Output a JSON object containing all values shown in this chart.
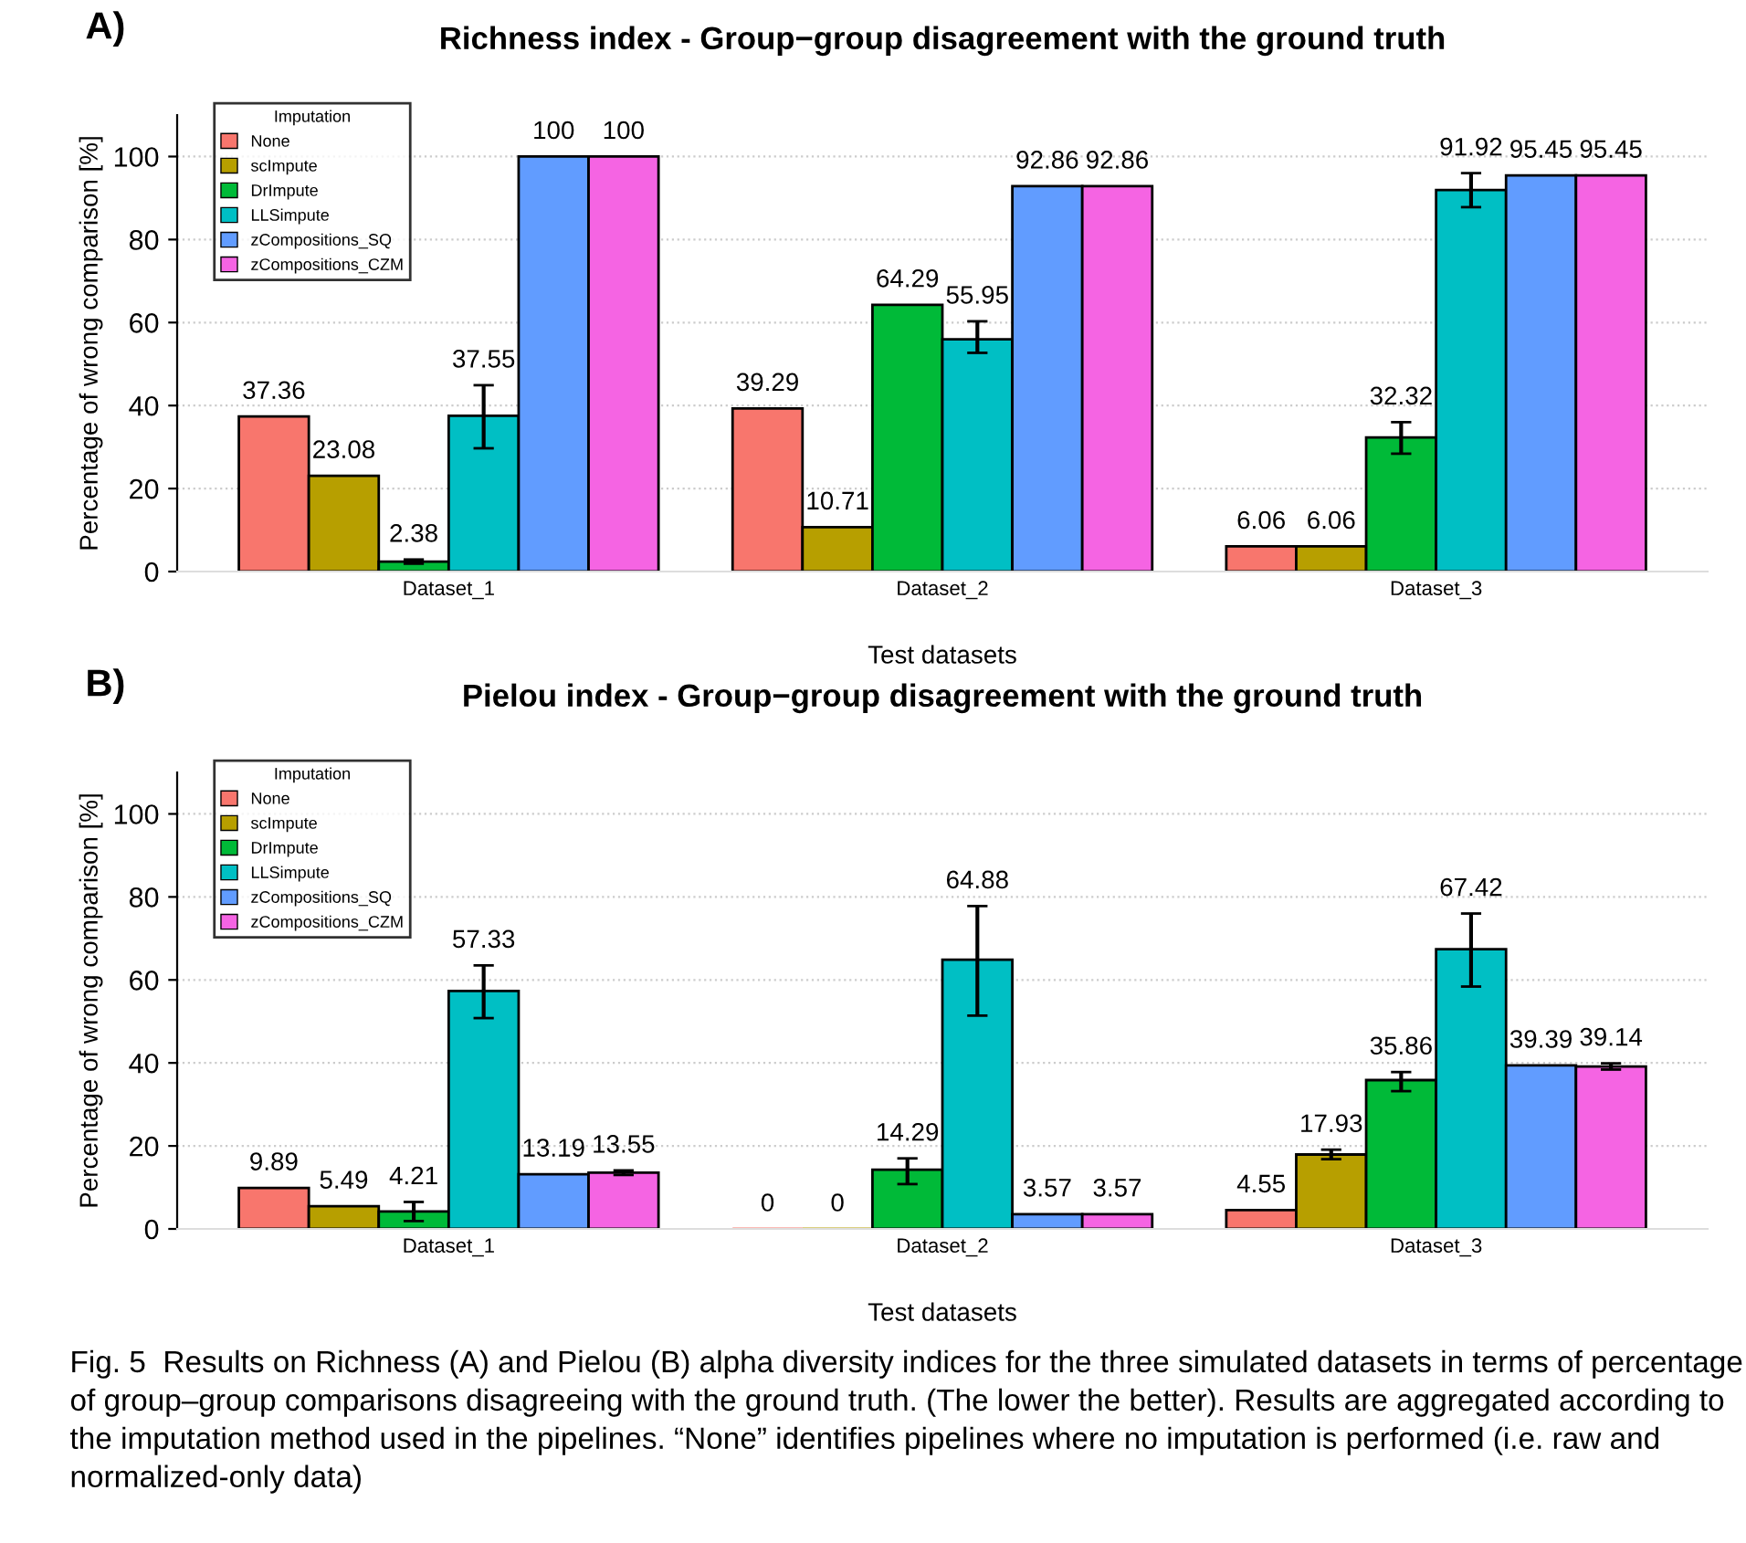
{
  "chart_data": [
    {
      "type": "bar",
      "title": "Richness index - Group−group disagreement with the ground truth",
      "xlabel": "Test datasets",
      "ylabel": "Percentage of wrong comparison [%]",
      "legend_title": "Imputation",
      "legend": "top left",
      "grid": "y",
      "data_labels": true,
      "annotations": [
        "A)"
      ],
      "categories": [
        "Dataset_1",
        "Dataset_2",
        "Dataset_3"
      ],
      "ylim": [
        0,
        110
      ],
      "yticks": [
        0,
        20,
        40,
        60,
        80,
        100
      ],
      "series": [
        {
          "name": "None",
          "color": "#f8766d",
          "values": [
            37.36,
            39.29,
            6.06
          ]
        },
        {
          "name": "scImpute",
          "color": "#b79f00",
          "values": [
            23.08,
            10.71,
            6.06
          ]
        },
        {
          "name": "DrImpute",
          "color": "#00ba38",
          "values": [
            2.38,
            64.29,
            32.32
          ],
          "errors": [
            [
              1.9,
              2.9
            ],
            null,
            [
              28.4,
              36
            ]
          ]
        },
        {
          "name": "LLSimpute",
          "color": "#00bfc4",
          "values": [
            37.55,
            55.95,
            91.92
          ],
          "errors": [
            [
              29.7,
              44.9
            ],
            [
              52.7,
              60.3
            ],
            [
              87.8,
              96
            ]
          ]
        },
        {
          "name": "zCompositions_SQ",
          "color": "#619cff",
          "values": [
            100,
            92.86,
            95.45
          ]
        },
        {
          "name": "zCompositions_CZM",
          "color": "#f564e3",
          "values": [
            100,
            92.86,
            95.45
          ]
        }
      ]
    },
    {
      "type": "bar",
      "title": "Pielou index - Group−group disagreement with the ground truth",
      "xlabel": "Test datasets",
      "ylabel": "Percentage of wrong comparison [%]",
      "legend_title": "Imputation",
      "legend": "top left",
      "grid": "y",
      "data_labels": true,
      "annotations": [
        "B)",
        "Fig. 5  Results on Richness (A) and Pielou (B) alpha diversity indices for the three simulated datasets in terms of percentage of group–group comparisons disagreeing with the ground truth. (The lower the better). Results are aggregated according to the imputation method used in the pipelines. “None” identifies pipelines where no imputation is performed (i.e. raw and normalized-only data)"
      ],
      "categories": [
        "Dataset_1",
        "Dataset_2",
        "Dataset_3"
      ],
      "ylim": [
        0,
        110
      ],
      "yticks": [
        0,
        20,
        40,
        60,
        80,
        100
      ],
      "series": [
        {
          "name": "None",
          "color": "#f8766d",
          "values": [
            9.89,
            0,
            4.55
          ]
        },
        {
          "name": "scImpute",
          "color": "#b79f00",
          "values": [
            5.49,
            0,
            17.93
          ],
          "errors": [
            null,
            null,
            [
              16.8,
              19.1
            ]
          ]
        },
        {
          "name": "DrImpute",
          "color": "#00ba38",
          "values": [
            4.21,
            14.29,
            35.86
          ],
          "errors": [
            [
              1.9,
              6.5
            ],
            [
              10.8,
              17
            ],
            [
              33.2,
              37.8
            ]
          ]
        },
        {
          "name": "LLSimpute",
          "color": "#00bfc4",
          "values": [
            57.33,
            64.88,
            67.42
          ],
          "errors": [
            [
              50.8,
              63.5
            ],
            [
              51.4,
              77.8
            ],
            [
              58.4,
              76
            ]
          ]
        },
        {
          "name": "zCompositions_SQ",
          "color": "#619cff",
          "values": [
            13.19,
            3.57,
            39.39
          ]
        },
        {
          "name": "zCompositions_CZM",
          "color": "#f564e3",
          "values": [
            13.55,
            3.57,
            39.14
          ],
          "errors": [
            [
              13,
              14.1
            ],
            null,
            [
              38.4,
              39.9
            ]
          ]
        }
      ]
    }
  ]
}
